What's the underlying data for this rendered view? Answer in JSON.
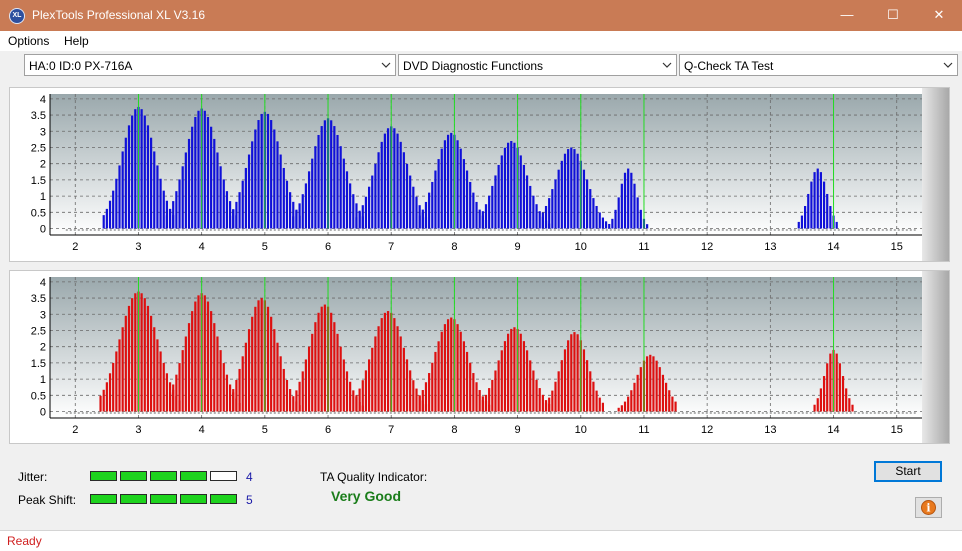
{
  "window": {
    "title": "PlexTools Professional XL V3.16",
    "icon_text": "XL",
    "minimize_glyph": "—",
    "maximize_glyph": "☐",
    "close_glyph": "✕"
  },
  "menu": {
    "items": [
      "Options",
      "Help"
    ]
  },
  "toolbar": {
    "drive": "HA:0 ID:0  PX-716A",
    "function": "DVD Diagnostic Functions",
    "test": "Q-Check TA Test"
  },
  "results": {
    "jitter_label": "Jitter:",
    "jitter_value": 4,
    "jitter_display": "4",
    "peak_shift_label": "Peak Shift:",
    "peak_shift_value": 5,
    "peak_shift_display": "5",
    "meter_max": 5,
    "ta_quality_label": "TA Quality Indicator:",
    "ta_quality_value": "Very Good"
  },
  "buttons": {
    "start_label": "Start",
    "info_glyph": "i"
  },
  "status": {
    "text": "Ready"
  },
  "colors": {
    "titlebar": "#c97b55",
    "top_bars": "#1010d8",
    "bottom_bars": "#dd1010",
    "marker_lines": "#22dd22",
    "meter_on": "#1ed31e",
    "quality_text": "#1a7d1a"
  },
  "chart_data": [
    {
      "type": "bar",
      "series_color": "#1010d8",
      "x_ticks": [
        "2",
        "3",
        "4",
        "5",
        "6",
        "7",
        "8",
        "9",
        "10",
        "11",
        "12",
        "13",
        "14",
        "15"
      ],
      "y_ticks": [
        "0",
        "0.5",
        "1",
        "1.5",
        "2",
        "2.5",
        "3",
        "3.5",
        "4"
      ],
      "xlim": [
        1.6,
        15.4
      ],
      "ylim": [
        -0.2,
        4.15
      ],
      "marker_x": [
        3,
        4,
        5,
        6,
        7,
        8,
        9,
        10,
        11,
        14
      ],
      "peaks": [
        {
          "center": 3.0,
          "height": 3.75,
          "from": 2.45,
          "to": 3.55
        },
        {
          "center": 4.0,
          "height": 3.7,
          "from": 3.45,
          "to": 4.55
        },
        {
          "center": 5.0,
          "height": 3.6,
          "from": 4.45,
          "to": 5.55
        },
        {
          "center": 6.0,
          "height": 3.4,
          "from": 5.45,
          "to": 6.55
        },
        {
          "center": 7.0,
          "height": 3.15,
          "from": 6.45,
          "to": 7.55
        },
        {
          "center": 7.95,
          "height": 2.95,
          "from": 7.45,
          "to": 8.5
        },
        {
          "center": 8.9,
          "height": 2.7,
          "from": 8.45,
          "to": 9.5
        },
        {
          "center": 9.85,
          "height": 2.5,
          "from": 9.4,
          "to": 10.45
        },
        {
          "center": 10.75,
          "height": 1.85,
          "from": 10.5,
          "to": 11.05
        },
        {
          "center": 13.75,
          "height": 1.85,
          "from": 13.45,
          "to": 14.05
        }
      ]
    },
    {
      "type": "bar",
      "series_color": "#dd1010",
      "x_ticks": [
        "2",
        "3",
        "4",
        "5",
        "6",
        "7",
        "8",
        "9",
        "10",
        "11",
        "12",
        "13",
        "14",
        "15"
      ],
      "y_ticks": [
        "0",
        "0.5",
        "1",
        "1.5",
        "2",
        "2.5",
        "3",
        "3.5",
        "4"
      ],
      "xlim": [
        1.6,
        15.4
      ],
      "ylim": [
        -0.2,
        4.15
      ],
      "marker_x": [
        3,
        4,
        5,
        6,
        7,
        8,
        9,
        10,
        11,
        14
      ],
      "peaks": [
        {
          "center": 3.0,
          "height": 3.7,
          "from": 2.4,
          "to": 3.65
        },
        {
          "center": 4.0,
          "height": 3.65,
          "from": 3.5,
          "to": 4.6
        },
        {
          "center": 4.95,
          "height": 3.5,
          "from": 4.5,
          "to": 5.55
        },
        {
          "center": 5.95,
          "height": 3.3,
          "from": 5.5,
          "to": 6.55
        },
        {
          "center": 6.95,
          "height": 3.1,
          "from": 6.45,
          "to": 7.55
        },
        {
          "center": 7.95,
          "height": 2.9,
          "from": 7.45,
          "to": 8.55
        },
        {
          "center": 8.95,
          "height": 2.6,
          "from": 8.45,
          "to": 9.5
        },
        {
          "center": 9.9,
          "height": 2.45,
          "from": 9.45,
          "to": 10.35
        },
        {
          "center": 11.1,
          "height": 1.75,
          "from": 10.6,
          "to": 11.5
        },
        {
          "center": 14.0,
          "height": 1.9,
          "from": 13.7,
          "to": 14.3
        }
      ]
    }
  ]
}
